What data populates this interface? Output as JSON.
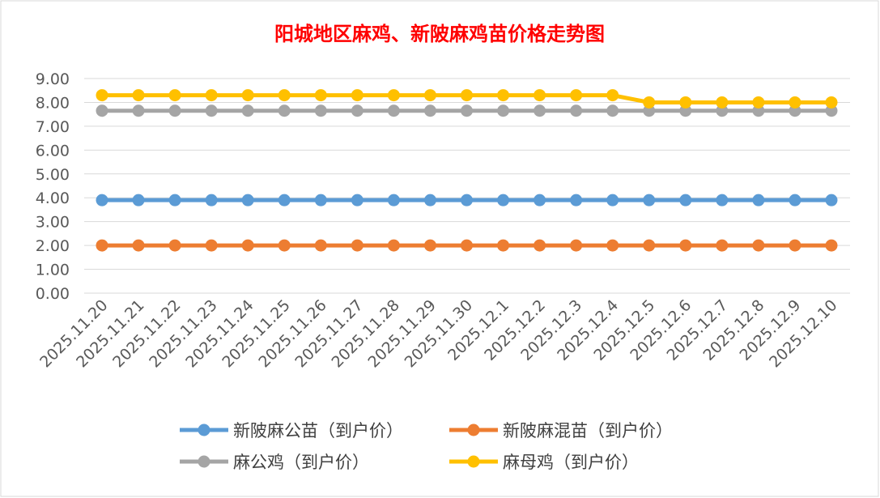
{
  "chart_data": {
    "type": "line",
    "title": "阳城地区麻鸡、新陂麻鸡苗价格走势图",
    "xlabel": "",
    "ylabel": "",
    "ylim": [
      0,
      9
    ],
    "yticks": [
      "0.00",
      "1.00",
      "2.00",
      "3.00",
      "4.00",
      "5.00",
      "6.00",
      "7.00",
      "8.00",
      "9.00"
    ],
    "grid": true,
    "legend_position": "bottom",
    "categories": [
      "2025.11.20",
      "2025.11.21",
      "2025.11.22",
      "2025.11.23",
      "2025.11.24",
      "2025.11.25",
      "2025.11.26",
      "2025.11.27",
      "2025.11.28",
      "2025.11.29",
      "2025.11.30",
      "2025.12.1",
      "2025.12.2",
      "2025.12.3",
      "2025.12.4",
      "2025.12.5",
      "2025.12.6",
      "2025.12.7",
      "2025.12.8",
      "2025.12.9",
      "2025.12.10"
    ],
    "series": [
      {
        "name": "新陂麻公苗（到户价）",
        "color": "#5b9bd5",
        "values": [
          3.9,
          3.9,
          3.9,
          3.9,
          3.9,
          3.9,
          3.9,
          3.9,
          3.9,
          3.9,
          3.9,
          3.9,
          3.9,
          3.9,
          3.9,
          3.9,
          3.9,
          3.9,
          3.9,
          3.9,
          3.9
        ]
      },
      {
        "name": "新陂麻混苗（到户价）",
        "color": "#ed7d31",
        "values": [
          2.0,
          2.0,
          2.0,
          2.0,
          2.0,
          2.0,
          2.0,
          2.0,
          2.0,
          2.0,
          2.0,
          2.0,
          2.0,
          2.0,
          2.0,
          2.0,
          2.0,
          2.0,
          2.0,
          2.0,
          2.0
        ]
      },
      {
        "name": "麻公鸡（到户价）",
        "color": "#a5a5a5",
        "values": [
          7.65,
          7.65,
          7.65,
          7.65,
          7.65,
          7.65,
          7.65,
          7.65,
          7.65,
          7.65,
          7.65,
          7.65,
          7.65,
          7.65,
          7.65,
          7.65,
          7.65,
          7.65,
          7.65,
          7.65,
          7.65
        ]
      },
      {
        "name": "麻母鸡（到户价）",
        "color": "#ffc000",
        "values": [
          8.3,
          8.3,
          8.3,
          8.3,
          8.3,
          8.3,
          8.3,
          8.3,
          8.3,
          8.3,
          8.3,
          8.3,
          8.3,
          8.3,
          8.3,
          8.0,
          8.0,
          8.0,
          8.0,
          8.0,
          8.0
        ]
      }
    ]
  }
}
